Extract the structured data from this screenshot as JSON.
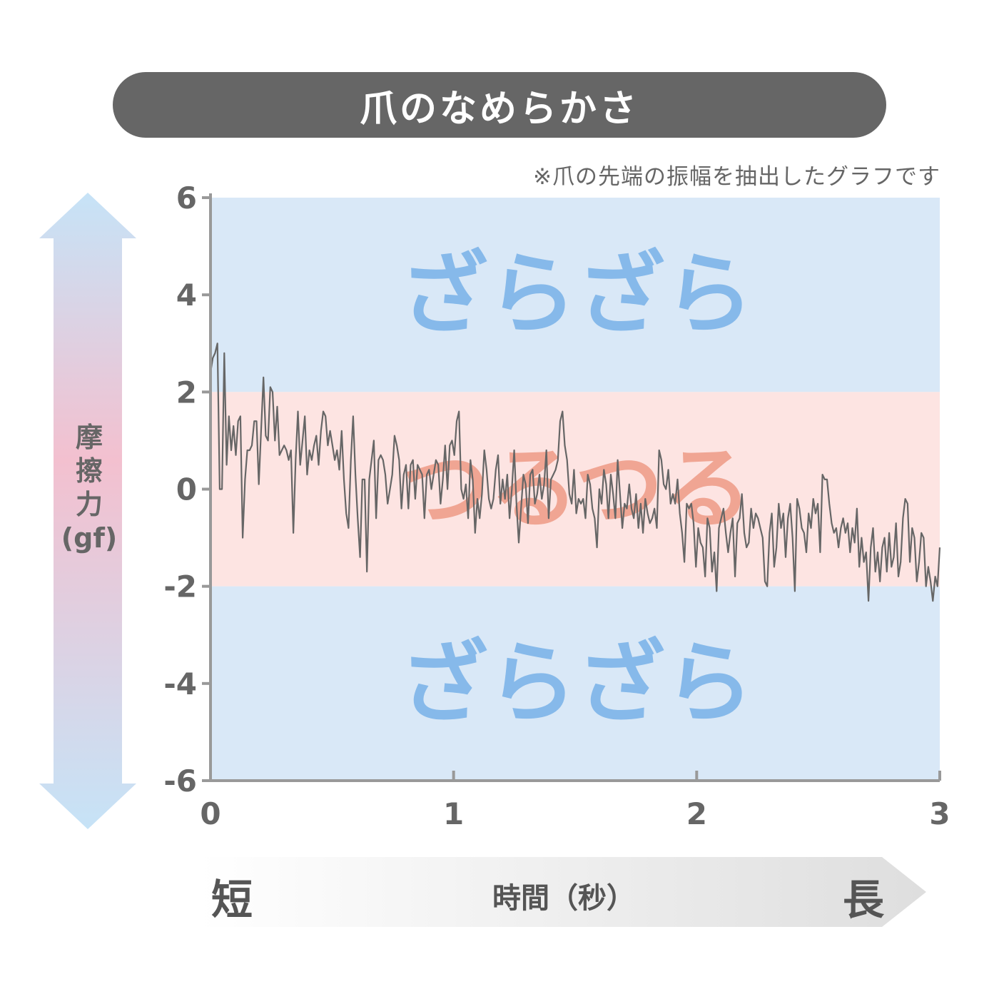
{
  "title": "爪のなめらかさ",
  "note": "※爪の先端の振幅を抽出したグラフです",
  "y_axis_label": "摩擦力（gf）",
  "x_axis": {
    "short": "短",
    "label": "時間（秒）",
    "long": "長"
  },
  "band_labels": {
    "rough": "ざらざら",
    "smooth": "つるつる"
  },
  "colors": {
    "rough_band": "#d9e8f7",
    "smooth_band": "#fde4e2",
    "rough_text": "#86b9ea",
    "smooth_text": "#f0a593",
    "line": "#666666",
    "axis": "#999999",
    "arrow_top": "#c6e3f7",
    "arrow_mid": "#f3c0cf"
  },
  "chart_data": {
    "type": "line",
    "title": "爪のなめらかさ",
    "xlabel": "時間（秒）",
    "ylabel": "摩擦力（gf）",
    "xlim": [
      0,
      3
    ],
    "ylim": [
      -6,
      6
    ],
    "x_ticks": [
      "0",
      "1",
      "2",
      "3"
    ],
    "y_ticks": [
      "6",
      "4",
      "2",
      "0",
      "-2",
      "-4",
      "-6"
    ],
    "bands": [
      {
        "label": "ざらざら",
        "from": 2,
        "to": 6
      },
      {
        "label": "つるつる",
        "from": -2,
        "to": 2
      },
      {
        "label": "ざらざら",
        "from": -6,
        "to": -2
      }
    ],
    "series": [
      {
        "values": [
          2.4,
          2.7,
          2.8,
          3.0,
          0.0,
          0.0,
          2.8,
          0.5,
          1.5,
          0.8,
          1.3,
          0.7,
          1.4,
          1.5,
          -1.0,
          0.2,
          0.8,
          0.8,
          0.9,
          1.4,
          1.4,
          0.1,
          1.2,
          2.3,
          1.1,
          1.0,
          2.1,
          2.0,
          1.0,
          1.7,
          0.7,
          0.8,
          0.9,
          0.8,
          0.6,
          0.8,
          -0.9,
          0.6,
          1.6,
          0.5,
          1.0,
          1.5,
          0.3,
          0.8,
          0.6,
          0.9,
          1.1,
          0.5,
          1.2,
          1.6,
          1.5,
          0.9,
          1.2,
          0.9,
          0.6,
          0.8,
          0.4,
          1.2,
          0.2,
          -0.5,
          -0.8,
          0.6,
          1.5,
          0.3,
          -0.6,
          -1.4,
          0.2,
          0.2,
          -1.7,
          0.2,
          0.6,
          1.0,
          -0.6,
          0.6,
          0.7,
          0.6,
          0.3,
          -0.3,
          0.0,
          0.3,
          1.1,
          0.9,
          0.6,
          -0.4,
          0.3,
          0.5,
          -0.4,
          0.5,
          0.6,
          -0.2,
          0.5,
          0.4,
          0.3,
          -0.6,
          0.3,
          0.4,
          0.0,
          0.3,
          0.6,
          0.5,
          -0.3,
          0.2,
          0.9,
          0.0,
          0.9,
          1.0,
          0.7,
          1.4,
          1.6,
          0.0,
          -0.2,
          0.1,
          -0.6,
          0.6,
          0.2,
          -0.9,
          -0.2,
          -0.6,
          -0.1,
          0.8,
          0.4,
          -0.2,
          -0.4,
          -0.2,
          0.4,
          0.7,
          -0.3,
          0.2,
          -0.2,
          0.3,
          -0.6,
          0.0,
          0.8,
          -0.3,
          -1.1,
          -0.4,
          0.3,
          0.1,
          -0.7,
          0.3,
          0.4,
          -0.3,
          -0.1,
          0.3,
          -0.2,
          0.1,
          0.8,
          -0.6,
          0.2,
          0.3,
          0.4,
          0.6,
          1.4,
          1.6,
          0.9,
          0.6,
          -0.1,
          -0.3,
          0.4,
          -0.5,
          -0.2,
          -0.3,
          -0.2,
          -0.6,
          0.3,
          0.1,
          -0.4,
          -0.6,
          -1.2,
          0.0,
          -0.3,
          0.4,
          0.1,
          -0.6,
          0.3,
          -0.1,
          -0.6,
          0.6,
          -0.1,
          -0.8,
          -0.3,
          -0.4,
          0.1,
          -0.4,
          -0.6,
          -0.1,
          -0.8,
          -0.3,
          -0.9,
          -0.2,
          -0.5,
          -0.7,
          -0.6,
          -0.4,
          -0.8,
          0.8,
          0.6,
          0.1,
          0.0,
          0.4,
          -0.3,
          -0.1,
          -0.3,
          0.2,
          -0.5,
          -0.9,
          -1.5,
          -0.3,
          -0.4,
          -0.3,
          -0.7,
          -1.6,
          -0.8,
          -1.1,
          -1.2,
          -1.8,
          -0.6,
          -0.8,
          -1.7,
          -1.3,
          -2.1,
          -0.8,
          -0.6,
          -0.4,
          -0.9,
          -1.3,
          -0.9,
          -0.6,
          -1.8,
          -0.7,
          -0.6,
          -0.1,
          -0.9,
          -1.2,
          -1.1,
          -0.4,
          -0.8,
          -0.5,
          -0.6,
          -0.8,
          -1.0,
          -1.9,
          -2.0,
          -0.9,
          -0.5,
          -1.6,
          -1.2,
          -0.3,
          -0.8,
          -0.5,
          -1.4,
          -0.6,
          -0.3,
          -1.0,
          -2.1,
          -0.2,
          -0.4,
          -0.8,
          -0.9,
          -1.3,
          -0.5,
          -0.8,
          -0.2,
          -0.5,
          -0.3,
          -1.3,
          0.3,
          0.2,
          0.2,
          -0.3,
          -0.7,
          -0.9,
          -0.8,
          -1.2,
          -0.8,
          -0.6,
          -0.9,
          -0.7,
          -1.3,
          -0.8,
          -1.1,
          -0.4,
          -1.6,
          -1.0,
          -1.5,
          -1.3,
          -2.3,
          -1.2,
          -0.8,
          -1.7,
          -1.3,
          -1.9,
          -1.2,
          -1.0,
          -1.7,
          -0.9,
          -1.6,
          -1.4,
          -0.7,
          -1.8,
          -1.5,
          -0.6,
          -0.2,
          -0.3,
          -1.5,
          -0.8,
          -1.0,
          -1.9,
          -1.5,
          -0.9,
          -1.0,
          -2.0,
          -1.6,
          -1.9,
          -2.3,
          -1.8,
          -2.0,
          -1.2
        ]
      }
    ]
  }
}
